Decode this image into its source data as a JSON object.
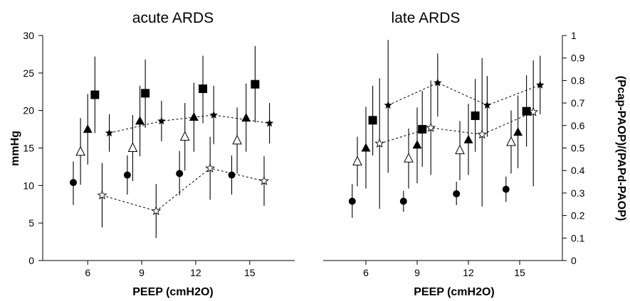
{
  "chart_data": [
    {
      "type": "scatter",
      "title": "acute ARDS",
      "xlabel": "PEEP (cmH2O)",
      "ylabel": "mmHg",
      "xticks": [
        "6",
        "9",
        "12",
        "15"
      ],
      "yticks": [
        "0",
        "5",
        "10",
        "15",
        "20",
        "25",
        "30"
      ],
      "xlim": [
        3.5,
        17.5
      ],
      "ylim": [
        0,
        30
      ],
      "grid": false,
      "legend": "none",
      "series": [
        {
          "marker": "filled-square",
          "axis": "left",
          "points": [
            {
              "x": 6.4,
              "y": 22.1,
              "err_low": 17.0,
              "err_high": 27.2
            },
            {
              "x": 9.2,
              "y": 22.3,
              "err_low": 17.7,
              "err_high": 26.8
            },
            {
              "x": 12.4,
              "y": 22.9,
              "err_low": 18.3,
              "err_high": 27.3
            },
            {
              "x": 15.3,
              "y": 23.5,
              "err_low": 18.4,
              "err_high": 28.6
            }
          ]
        },
        {
          "marker": "filled-triangle",
          "axis": "left",
          "points": [
            {
              "x": 6.0,
              "y": 17.5,
              "err_low": 12.8,
              "err_high": 22.2
            },
            {
              "x": 8.9,
              "y": 18.6,
              "err_low": 13.9,
              "err_high": 23.3
            },
            {
              "x": 11.9,
              "y": 19.1,
              "err_low": 14.5,
              "err_high": 23.7
            },
            {
              "x": 14.8,
              "y": 19.0,
              "err_low": 14.5,
              "err_high": 23.6
            }
          ]
        },
        {
          "marker": "open-triangle",
          "axis": "left",
          "points": [
            {
              "x": 5.6,
              "y": 14.5,
              "err_low": 10.1,
              "err_high": 19.0
            },
            {
              "x": 8.5,
              "y": 15.0,
              "err_low": 10.6,
              "err_high": 19.4
            },
            {
              "x": 11.4,
              "y": 16.5,
              "err_low": 12.0,
              "err_high": 21.0
            },
            {
              "x": 14.3,
              "y": 16.0,
              "err_low": 11.6,
              "err_high": 20.4
            }
          ]
        },
        {
          "marker": "filled-circle",
          "axis": "left",
          "points": [
            {
              "x": 5.2,
              "y": 10.4,
              "err_low": 7.4,
              "err_high": 13.2
            },
            {
              "x": 8.2,
              "y": 11.4,
              "err_low": 8.8,
              "err_high": 14.0
            },
            {
              "x": 11.1,
              "y": 11.6,
              "err_low": 8.7,
              "err_high": 14.6
            },
            {
              "x": 14.0,
              "y": 11.4,
              "err_low": 8.8,
              "err_high": 14.0
            }
          ]
        },
        {
          "marker": "filled-star",
          "axis": "left",
          "connected": true,
          "points": [
            {
              "x": 7.2,
              "y": 17.0,
              "err_low": 14.5,
              "err_high": 19.5
            },
            {
              "x": 10.1,
              "y": 18.6,
              "err_low": 15.9,
              "err_high": 21.3
            },
            {
              "x": 13.0,
              "y": 19.4,
              "err_low": 15.5,
              "err_high": 23.3
            },
            {
              "x": 16.1,
              "y": 18.3,
              "err_low": 15.6,
              "err_high": 21.0
            }
          ]
        },
        {
          "marker": "open-star",
          "axis": "left",
          "connected": true,
          "points": [
            {
              "x": 6.8,
              "y": 8.7,
              "err_low": 4.4,
              "err_high": 13.0
            },
            {
              "x": 9.8,
              "y": 6.6,
              "err_low": 3.0,
              "err_high": 10.2
            },
            {
              "x": 12.8,
              "y": 12.3,
              "err_low": 8.1,
              "err_high": 16.5
            },
            {
              "x": 15.8,
              "y": 10.6,
              "err_low": 7.3,
              "err_high": 13.9
            }
          ]
        }
      ]
    },
    {
      "type": "scatter",
      "title": "late ARDS",
      "xlabel": "PEEP (cmH2O)",
      "ylabel": "(Pcap-PAOP)/(PAPd-PAOP)",
      "xticks": [
        "6",
        "9",
        "12",
        "15"
      ],
      "yticks": [
        "0",
        "0.1",
        "0.2",
        "0.3",
        "0.4",
        "0.5",
        "0.6",
        "0.7",
        "0.8",
        "0.9",
        "1"
      ],
      "xlim": [
        3.5,
        17.5
      ],
      "ylim": [
        0,
        1
      ],
      "grid": false,
      "legend": "none",
      "series": [
        {
          "marker": "filled-square",
          "axis": "left",
          "points": [
            {
              "x": 6.4,
              "y": 18.7,
              "err_low": 14.0,
              "err_high": 23.3
            },
            {
              "x": 9.3,
              "y": 17.5,
              "err_low": 12.5,
              "err_high": 22.6
            },
            {
              "x": 12.4,
              "y": 19.3,
              "err_low": 14.5,
              "err_high": 24.2
            },
            {
              "x": 15.4,
              "y": 19.9,
              "err_low": 15.2,
              "err_high": 24.7
            }
          ]
        },
        {
          "marker": "filled-triangle",
          "axis": "left",
          "points": [
            {
              "x": 6.0,
              "y": 15.0,
              "err_low": 9.6,
              "err_high": 20.5
            },
            {
              "x": 9.0,
              "y": 15.4,
              "err_low": 10.3,
              "err_high": 20.4
            },
            {
              "x": 12.0,
              "y": 16.1,
              "err_low": 11.4,
              "err_high": 20.9
            },
            {
              "x": 14.9,
              "y": 17.1,
              "err_low": 12.3,
              "err_high": 22.0
            }
          ]
        },
        {
          "marker": "open-triangle",
          "axis": "left",
          "points": [
            {
              "x": 5.5,
              "y": 13.2,
              "err_low": 9.9,
              "err_high": 16.5
            },
            {
              "x": 8.5,
              "y": 13.6,
              "err_low": 9.6,
              "err_high": 17.6
            },
            {
              "x": 11.5,
              "y": 14.7,
              "err_low": 10.7,
              "err_high": 18.6
            },
            {
              "x": 14.5,
              "y": 15.8,
              "err_low": 11.6,
              "err_high": 20.0
            }
          ]
        },
        {
          "marker": "filled-circle",
          "axis": "left",
          "points": [
            {
              "x": 5.2,
              "y": 7.9,
              "err_low": 5.7,
              "err_high": 10.2
            },
            {
              "x": 8.2,
              "y": 7.9,
              "err_low": 6.5,
              "err_high": 9.3
            },
            {
              "x": 11.3,
              "y": 8.9,
              "err_low": 7.4,
              "err_high": 10.5
            },
            {
              "x": 14.2,
              "y": 9.5,
              "err_low": 7.8,
              "err_high": 11.2
            }
          ]
        },
        {
          "marker": "filled-star",
          "axis": "right",
          "connected": true,
          "points": [
            {
              "x": 7.3,
              "y": 0.69,
              "err_low": 0.39,
              "err_high": 0.98
            },
            {
              "x": 10.2,
              "y": 0.79,
              "err_low": 0.64,
              "err_high": 0.92
            },
            {
              "x": 13.1,
              "y": 0.69,
              "err_low": 0.55,
              "err_high": 0.82
            },
            {
              "x": 16.2,
              "y": 0.78,
              "err_low": 0.65,
              "err_high": 0.91
            }
          ]
        },
        {
          "marker": "open-star",
          "axis": "right",
          "connected": true,
          "points": [
            {
              "x": 6.8,
              "y": 0.52,
              "err_low": 0.23,
              "err_high": 0.81
            },
            {
              "x": 9.8,
              "y": 0.59,
              "err_low": 0.38,
              "err_high": 0.8
            },
            {
              "x": 12.8,
              "y": 0.56,
              "err_low": 0.24,
              "err_high": 0.9
            },
            {
              "x": 15.8,
              "y": 0.66,
              "err_low": 0.33,
              "err_high": 0.89
            }
          ]
        }
      ]
    }
  ]
}
